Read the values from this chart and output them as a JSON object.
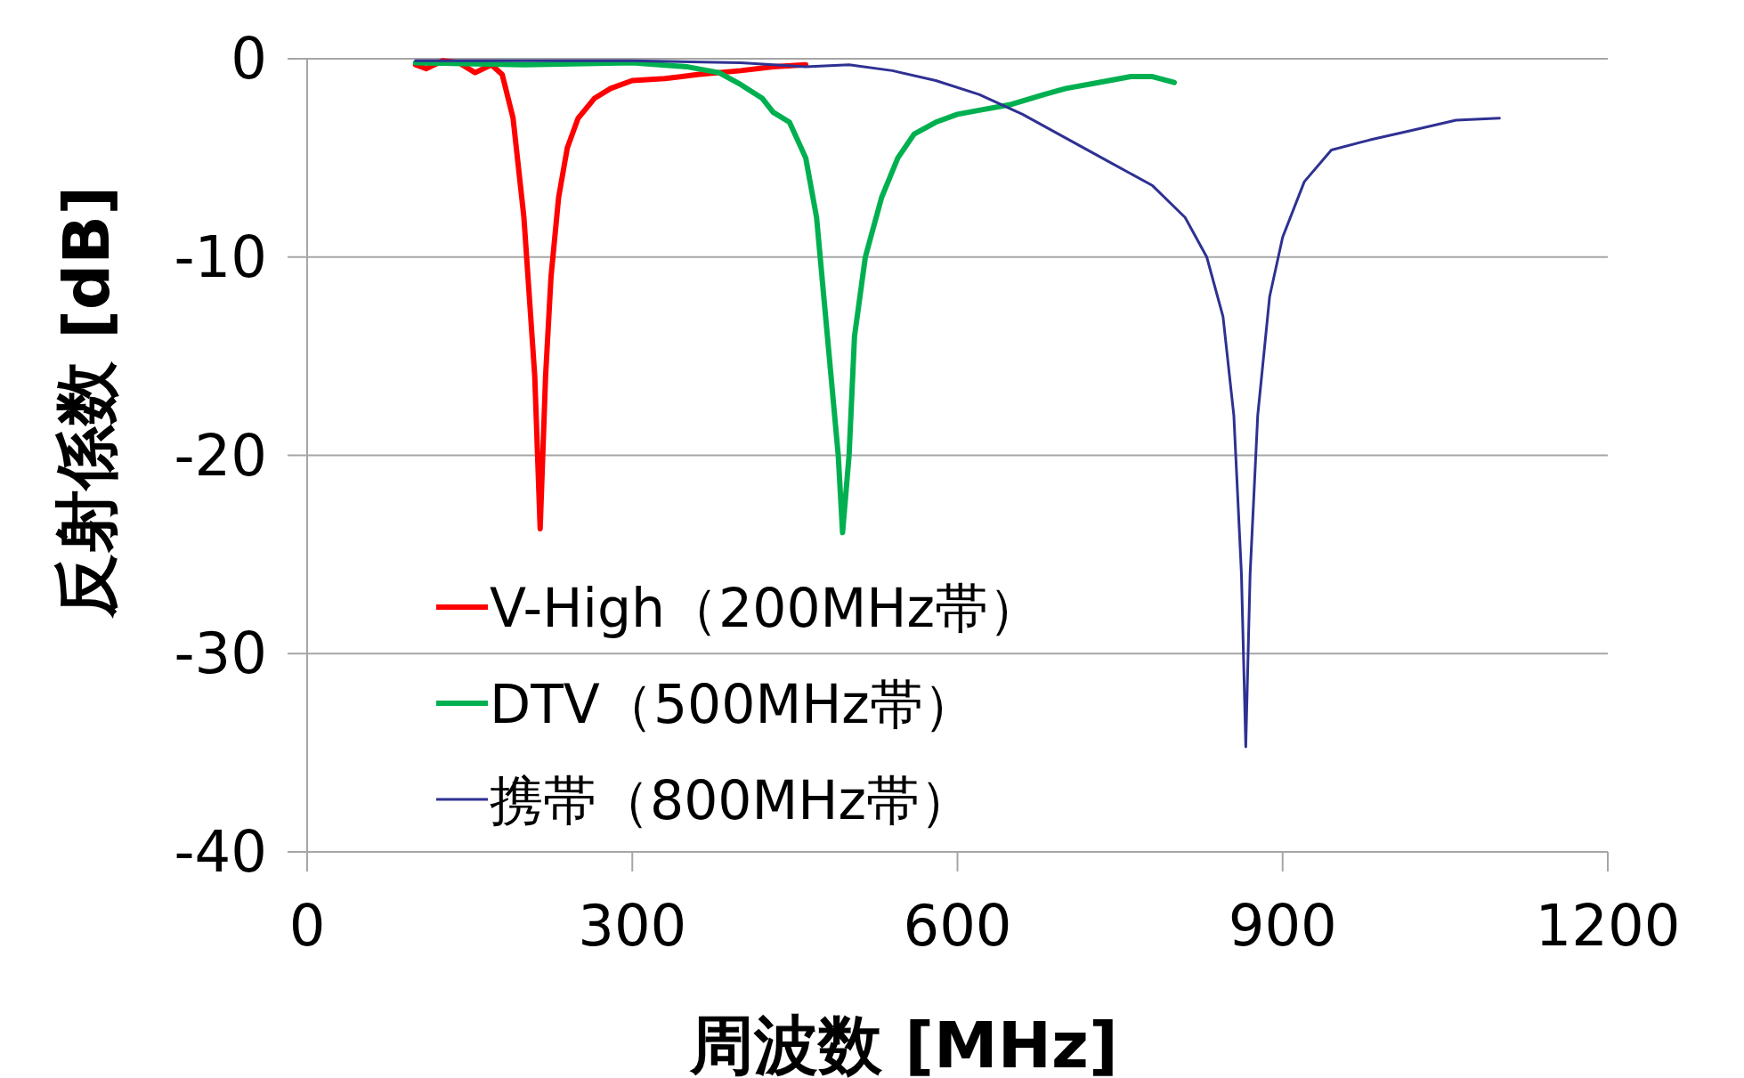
{
  "chart_data": {
    "type": "line",
    "xlabel": "周波数 [MHz]",
    "ylabel": "反射係数 [dB]",
    "xlim": [
      0,
      1200
    ],
    "ylim": [
      -40,
      0
    ],
    "xticks": [
      0,
      300,
      600,
      900,
      1200
    ],
    "yticks": [
      0,
      -10,
      -20,
      -30,
      -40
    ],
    "grid": "y",
    "legend": "bottom left",
    "series": [
      {
        "name": "V-High（200MHz帯）",
        "color": "#ff0000",
        "x": [
          100,
          110,
          125,
          140,
          155,
          170,
          180,
          190,
          200,
          210,
          215,
          220,
          225,
          232,
          240,
          250,
          265,
          280,
          300,
          330,
          360,
          400,
          430,
          460
        ],
        "values": [
          -0.3,
          -0.5,
          -0.1,
          -0.2,
          -0.7,
          -0.3,
          -0.8,
          -3,
          -8,
          -16,
          -23.7,
          -16,
          -11,
          -7,
          -4.5,
          -3,
          -2,
          -1.5,
          -1.1,
          -1.0,
          -0.8,
          -0.6,
          -0.4,
          -0.3
        ]
      },
      {
        "name": "DTV（500MHz帯）",
        "color": "#00b050",
        "x": [
          100,
          200,
          300,
          350,
          380,
          400,
          420,
          430,
          445,
          460,
          470,
          480,
          490,
          494,
          500,
          505,
          515,
          530,
          545,
          560,
          580,
          600,
          620,
          650,
          680,
          700,
          730,
          760,
          780,
          800
        ],
        "values": [
          -0.2,
          -0.3,
          -0.2,
          -0.4,
          -0.7,
          -1.3,
          -2.0,
          -2.7,
          -3.2,
          -5,
          -8,
          -14,
          -20,
          -23.9,
          -20,
          -14,
          -10,
          -7,
          -5,
          -3.8,
          -3.2,
          -2.8,
          -2.6,
          -2.3,
          -1.8,
          -1.5,
          -1.2,
          -0.9,
          -0.9,
          -1.2
        ]
      },
      {
        "name": "携帯（800MHz帯）",
        "color": "#2e3192",
        "x": [
          100,
          300,
          400,
          460,
          500,
          540,
          580,
          620,
          660,
          700,
          740,
          780,
          810,
          830,
          845,
          855,
          862,
          866,
          870,
          877,
          888,
          900,
          920,
          945,
          980,
          1020,
          1060,
          1100
        ],
        "values": [
          -0.1,
          -0.1,
          -0.2,
          -0.4,
          -0.3,
          -0.6,
          -1.1,
          -1.8,
          -2.8,
          -4,
          -5.2,
          -6.4,
          -8,
          -10,
          -13,
          -18,
          -26,
          -34.7,
          -26,
          -18,
          -12,
          -9,
          -6.2,
          -4.6,
          -4.1,
          -3.6,
          -3.1,
          -3.0
        ]
      }
    ]
  }
}
